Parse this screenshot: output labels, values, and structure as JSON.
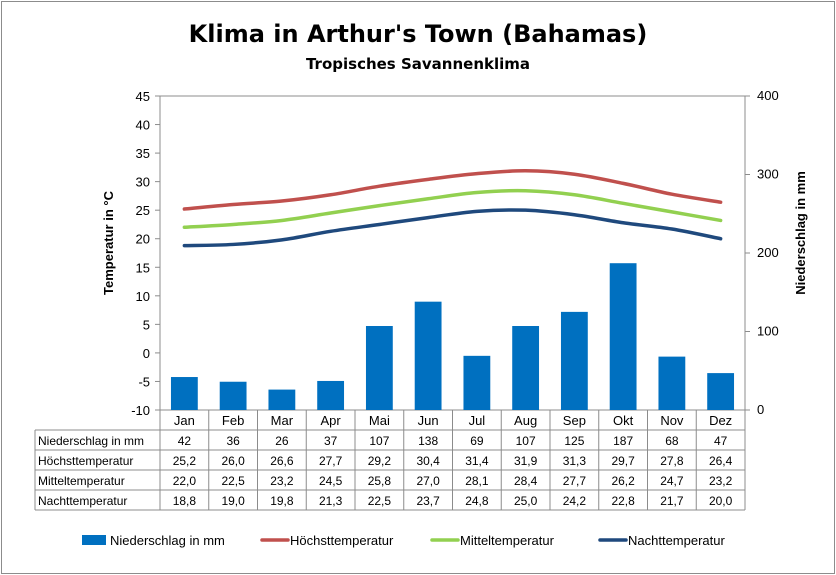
{
  "chart_data": {
    "type": "bar+line",
    "title": "Klima in Arthur's Town (Bahamas)",
    "subtitle": "Tropisches Savannenklima",
    "ylabel": "Temperatur in °C",
    "y2label": "Niederschlag in mm",
    "ylim": [
      -10,
      45
    ],
    "y2lim": [
      0,
      400
    ],
    "yticks": [
      "45",
      "40",
      "35",
      "30",
      "25",
      "20",
      "15",
      "10",
      "5",
      "0",
      "-5",
      "-10"
    ],
    "y2ticks": [
      "400",
      "300",
      "200",
      "100",
      "0"
    ],
    "categories": [
      "Jan",
      "Feb",
      "Mar",
      "Apr",
      "Mai",
      "Jun",
      "Jul",
      "Aug",
      "Sep",
      "Okt",
      "Nov",
      "Dez"
    ],
    "series": [
      {
        "name": "Niederschlag in mm",
        "type": "bar",
        "axis": "right",
        "color": "#0070c0",
        "values": [
          42,
          36,
          26,
          37,
          107,
          138,
          69,
          107,
          125,
          187,
          68,
          47
        ],
        "display": [
          "42",
          "36",
          "26",
          "37",
          "107",
          "138",
          "69",
          "107",
          "125",
          "187",
          "68",
          "47"
        ]
      },
      {
        "name": "Höchsttemperatur",
        "type": "line",
        "axis": "left",
        "color": "#c0504d",
        "values": [
          25.2,
          26.0,
          26.6,
          27.7,
          29.2,
          30.4,
          31.4,
          31.9,
          31.3,
          29.7,
          27.8,
          26.4
        ],
        "display": [
          "25,2",
          "26,0",
          "26,6",
          "27,7",
          "29,2",
          "30,4",
          "31,4",
          "31,9",
          "31,3",
          "29,7",
          "27,8",
          "26,4"
        ]
      },
      {
        "name": "Mitteltemperatur",
        "type": "line",
        "axis": "left",
        "color": "#92d050",
        "values": [
          22.0,
          22.5,
          23.2,
          24.5,
          25.8,
          27.0,
          28.1,
          28.4,
          27.7,
          26.2,
          24.7,
          23.2
        ],
        "display": [
          "22,0",
          "22,5",
          "23,2",
          "24,5",
          "25,8",
          "27,0",
          "28,1",
          "28,4",
          "27,7",
          "26,2",
          "24,7",
          "23,2"
        ]
      },
      {
        "name": "Nachttemperatur",
        "type": "line",
        "axis": "left",
        "color": "#1f497d",
        "values": [
          18.8,
          19.0,
          19.8,
          21.3,
          22.5,
          23.7,
          24.8,
          25.0,
          24.2,
          22.8,
          21.7,
          20.0
        ],
        "display": [
          "18,8",
          "19,0",
          "19,8",
          "21,3",
          "22,5",
          "23,7",
          "24,8",
          "25,0",
          "24,2",
          "22,8",
          "21,7",
          "20,0"
        ]
      }
    ]
  }
}
